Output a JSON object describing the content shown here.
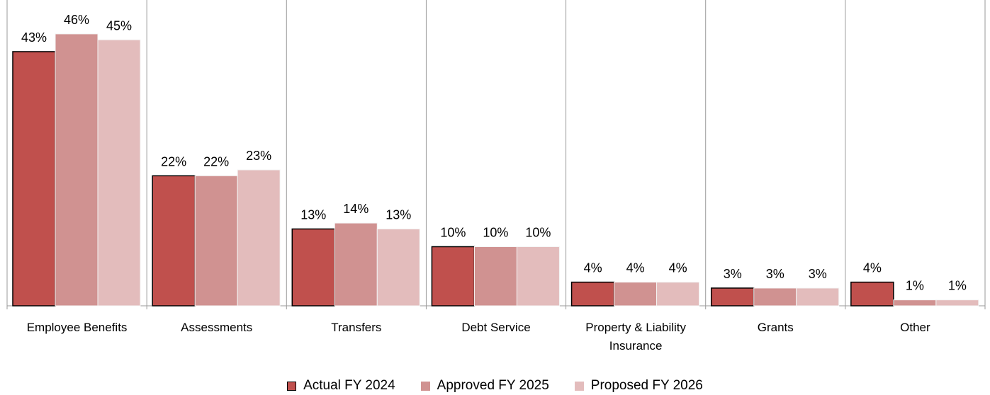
{
  "chart_data": {
    "type": "bar",
    "categories": [
      "Employee Benefits",
      "Assessments",
      "Transfers",
      "Debt Service",
      "Property & Liability Insurance",
      "Grants",
      "Other"
    ],
    "series": [
      {
        "name": "Actual FY 2024",
        "color": "#c0504d",
        "values": [
          43,
          22,
          13,
          10,
          4,
          3,
          4
        ],
        "value_labels": [
          "43%",
          "22%",
          "13%",
          "10%",
          "4%",
          "3%",
          "4%"
        ]
      },
      {
        "name": "Approved FY 2025",
        "color": "#d09291",
        "values": [
          46,
          22,
          14,
          10,
          4,
          3,
          1
        ],
        "value_labels": [
          "46%",
          "22%",
          "14%",
          "10%",
          "4%",
          "3%",
          "1%"
        ]
      },
      {
        "name": "Proposed FY 2026",
        "color": "#e3bcbc",
        "values": [
          45,
          23,
          13,
          10,
          4,
          3,
          1
        ],
        "value_labels": [
          "45%",
          "23%",
          "13%",
          "10%",
          "4%",
          "3%",
          "1%"
        ]
      }
    ],
    "legend": "bottom"
  }
}
